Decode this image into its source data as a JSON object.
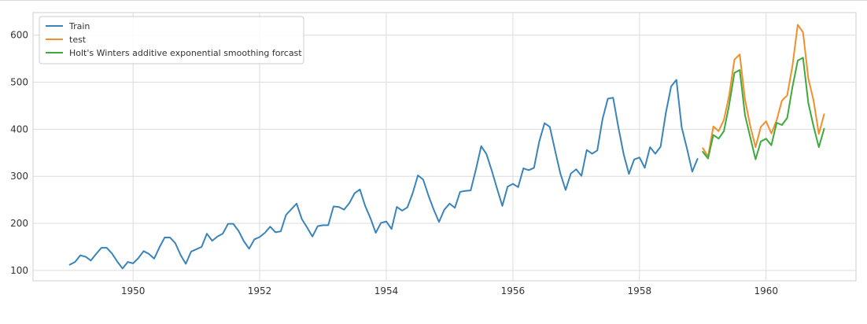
{
  "chart_data": {
    "type": "line",
    "title": "",
    "xlabel": "",
    "ylabel": "",
    "xlim": [
      1948.42,
      1961.42
    ],
    "ylim": [
      78,
      648
    ],
    "grid": true,
    "legend_position": "upper-left",
    "x_ticks": [
      1950,
      1952,
      1954,
      1956,
      1958,
      1960
    ],
    "x_tick_labels": [
      "1950",
      "1952",
      "1954",
      "1956",
      "1958",
      "1960"
    ],
    "y_ticks": [
      100,
      200,
      300,
      400,
      500,
      600
    ],
    "y_tick_labels": [
      "100",
      "200",
      "300",
      "400",
      "500",
      "600"
    ],
    "x_start": "1949-01",
    "series": [
      {
        "name": "Train",
        "color": "#3a84b9",
        "start_index": 0,
        "values": [
          112,
          118,
          132,
          129,
          121,
          135,
          148,
          148,
          136,
          119,
          104,
          118,
          115,
          126,
          141,
          135,
          125,
          149,
          170,
          170,
          158,
          133,
          114,
          140,
          145,
          150,
          178,
          163,
          172,
          178,
          199,
          199,
          184,
          162,
          146,
          166,
          171,
          180,
          193,
          181,
          183,
          218,
          230,
          242,
          209,
          191,
          172,
          194,
          196,
          196,
          236,
          235,
          229,
          243,
          264,
          272,
          237,
          211,
          180,
          201,
          204,
          188,
          235,
          227,
          234,
          264,
          302,
          293,
          259,
          229,
          203,
          229,
          242,
          233,
          267,
          269,
          270,
          315,
          364,
          347,
          312,
          274,
          237,
          278,
          284,
          277,
          317,
          313,
          318,
          374,
          413,
          405,
          355,
          306,
          271,
          306,
          315,
          301,
          356,
          348,
          355,
          422,
          465,
          467,
          404,
          347,
          305,
          336,
          340,
          318,
          362,
          348,
          363,
          435,
          491,
          505,
          404,
          359,
          310,
          337
        ]
      },
      {
        "name": "test",
        "color": "#f28e2b",
        "start_index": 120,
        "values": [
          360,
          342,
          406,
          396,
          420,
          472,
          548,
          559,
          463,
          407,
          362,
          405,
          417,
          391,
          419,
          461,
          472,
          535,
          622,
          606,
          508,
          461,
          390,
          432
        ]
      },
      {
        "name": "Holt's Winters additive exponential smoothing forcast",
        "color": "#3daa3d",
        "start_index": 120,
        "values": [
          352,
          338,
          388,
          380,
          396,
          452,
          520,
          526,
          430,
          383,
          336,
          374,
          380,
          366,
          414,
          409,
          424,
          490,
          546,
          552,
          456,
          406,
          362,
          401
        ]
      }
    ]
  }
}
